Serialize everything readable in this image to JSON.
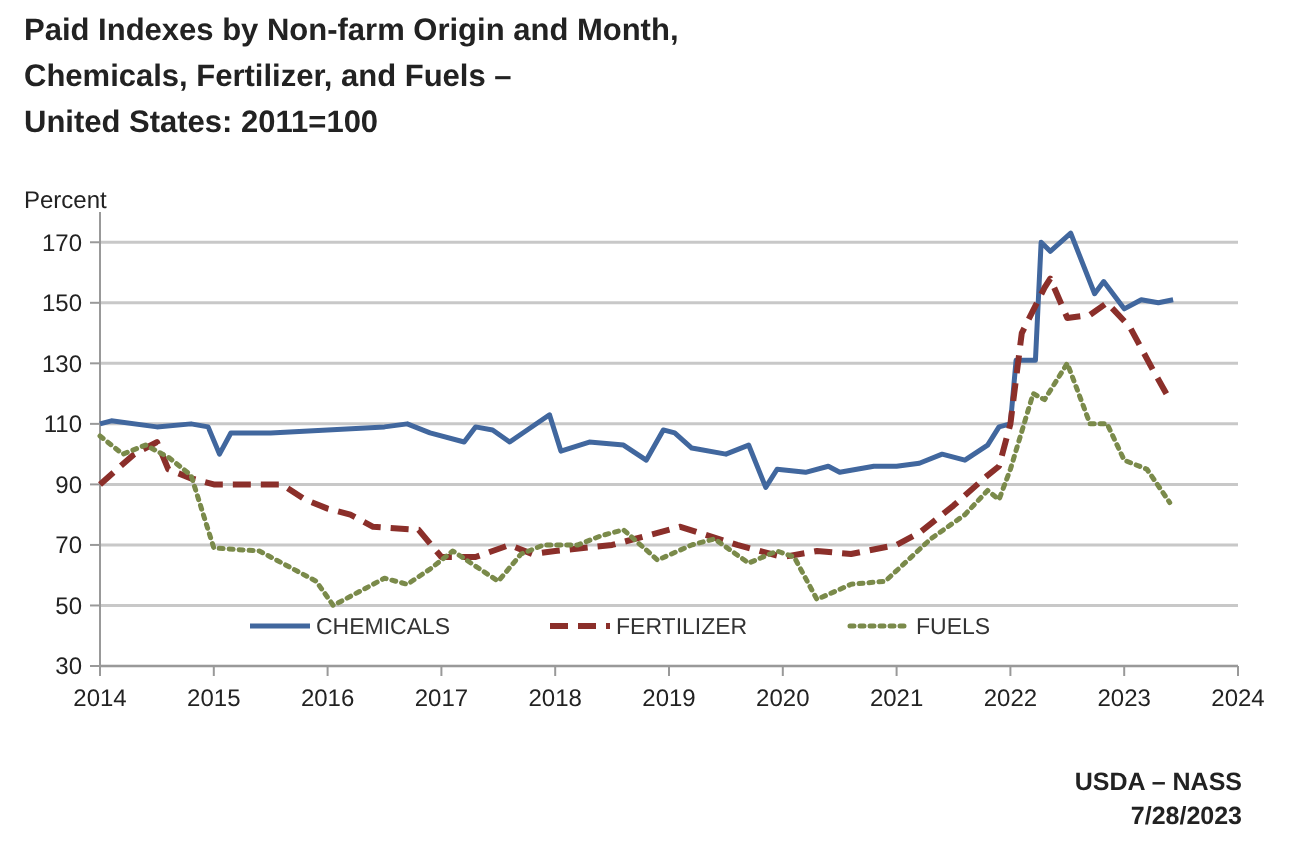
{
  "chart_data": {
    "type": "line",
    "title": "Paid Indexes by Non-farm Origin and Month,\nChemicals, Fertilizer, and Fuels –\nUnited States: 2011=100",
    "ylabel": "Percent",
    "annotations": [
      "USDA – NASS",
      "7/28/2023"
    ],
    "xlim": [
      2014,
      2024
    ],
    "xticks": [
      2014,
      2015,
      2016,
      2017,
      2018,
      2019,
      2020,
      2021,
      2022,
      2023,
      2024
    ],
    "ylim": [
      30,
      180
    ],
    "yticks": [
      30,
      50,
      70,
      90,
      110,
      130,
      150,
      170
    ],
    "grid": "y",
    "legend": "bottom",
    "series": [
      {
        "name": "CHEMICALS",
        "color": "#41679e",
        "line_style": "solid",
        "x": [
          2014,
          2014.1,
          2014.5,
          2014.8,
          2014.95,
          2015.05,
          2015.15,
          2015.5,
          2016,
          2016.5,
          2016.7,
          2016.9,
          2017.2,
          2017.3,
          2017.45,
          2017.6,
          2017.95,
          2018.05,
          2018.3,
          2018.6,
          2018.8,
          2018.95,
          2019.05,
          2019.2,
          2019.5,
          2019.7,
          2019.85,
          2019.95,
          2020.2,
          2020.4,
          2020.5,
          2020.8,
          2021,
          2021.2,
          2021.4,
          2021.6,
          2021.8,
          2021.9,
          2022,
          2022.05,
          2022.22,
          2022.27,
          2022.35,
          2022.53,
          2022.74,
          2022.82,
          2023,
          2023.15,
          2023.3,
          2023.43
        ],
        "values": [
          110,
          111,
          109,
          110,
          109,
          100,
          107,
          107,
          108,
          109,
          110,
          107,
          104,
          109,
          108,
          104,
          113,
          101,
          104,
          103,
          98,
          108,
          107,
          102,
          100,
          103,
          89,
          95,
          94,
          96,
          94,
          96,
          96,
          97,
          100,
          98,
          103,
          109,
          110,
          131,
          131,
          170,
          167,
          173,
          153,
          157,
          148,
          151,
          150,
          151
        ]
      },
      {
        "name": "FERTILIZER",
        "color": "#8b2f2a",
        "line_style": "dashed",
        "x": [
          2014,
          2014.3,
          2014.5,
          2014.6,
          2014.8,
          2015,
          2015.6,
          2015.8,
          2016,
          2016.2,
          2016.4,
          2016.8,
          2017,
          2017.3,
          2017.6,
          2017.8,
          2018,
          2018.5,
          2019.1,
          2019.6,
          2020,
          2020.3,
          2020.6,
          2021,
          2021.2,
          2021.5,
          2021.8,
          2021.9,
          2022,
          2022.1,
          2022.3,
          2022.35,
          2022.5,
          2022.7,
          2022.85,
          2023.05,
          2023.25,
          2023.4
        ],
        "values": [
          90,
          100,
          104,
          95,
          92,
          90,
          90,
          85,
          82,
          80,
          76,
          75,
          66,
          66,
          70,
          67,
          68,
          70,
          76,
          70,
          66,
          68,
          67,
          70,
          74,
          83,
          93,
          96,
          110,
          140,
          155,
          158,
          145,
          146,
          150,
          142,
          128,
          118
        ]
      },
      {
        "name": "FUELS",
        "color": "#7a8a4a",
        "line_style": "dotted",
        "x": [
          2014,
          2014.2,
          2014.4,
          2014.6,
          2014.8,
          2015,
          2015.4,
          2015.7,
          2015.9,
          2016.05,
          2016.3,
          2016.5,
          2016.7,
          2016.9,
          2017.1,
          2017.3,
          2017.5,
          2017.7,
          2017.9,
          2018.2,
          2018.4,
          2018.6,
          2018.9,
          2019.2,
          2019.4,
          2019.7,
          2019.95,
          2020.1,
          2020.3,
          2020.6,
          2020.9,
          2021.1,
          2021.3,
          2021.6,
          2021.8,
          2021.9,
          2022,
          2022.2,
          2022.3,
          2022.5,
          2022.7,
          2022.85,
          2023,
          2023.2,
          2023.4
        ],
        "values": [
          106,
          100,
          103,
          99,
          93,
          69,
          68,
          62,
          58,
          50,
          55,
          59,
          57,
          62,
          68,
          63,
          58,
          67,
          70,
          70,
          73,
          75,
          65,
          70,
          72,
          64,
          68,
          66,
          52,
          57,
          58,
          65,
          72,
          80,
          88,
          85,
          95,
          120,
          118,
          130,
          110,
          110,
          98,
          95,
          84
        ]
      }
    ]
  }
}
